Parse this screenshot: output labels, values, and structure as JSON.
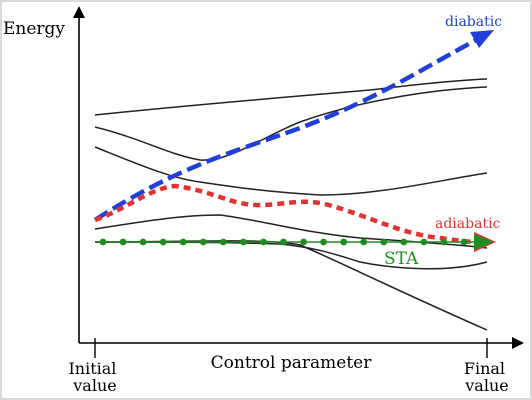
{
  "labels": {
    "y_axis": "Energy",
    "x_axis": "Control parameter",
    "x_start": [
      "Initial",
      "value"
    ],
    "x_end": [
      "Final",
      "value"
    ],
    "diabatic": "diabatic",
    "adiabatic": "adiabatic",
    "sta": "STA"
  },
  "colors": {
    "diabatic": "#1f3fd8",
    "adiabatic": "#e23333",
    "sta": "#1e8c1e",
    "curves": "#222222",
    "axes": "#000000",
    "frame": "#d9d9d9"
  },
  "energy_curves": 6,
  "sta_dot_count": 19
}
